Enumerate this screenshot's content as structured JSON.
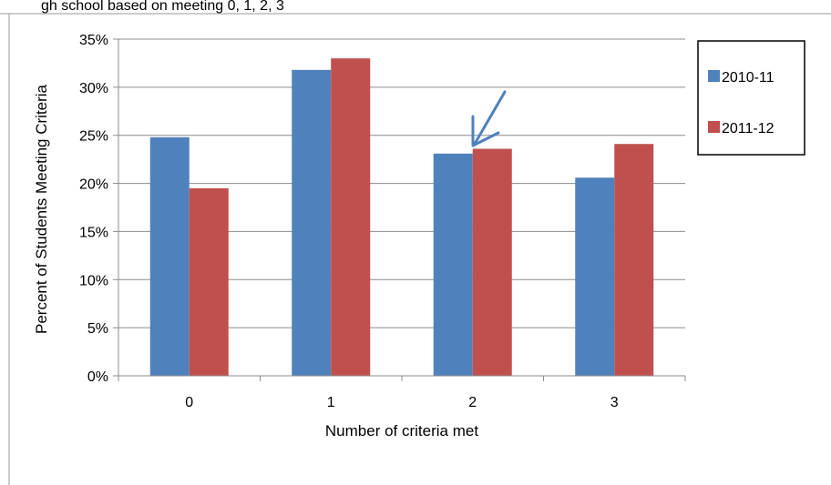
{
  "header_fragment": "gh school based on meeting 0, 1, 2, 3",
  "chart_data": {
    "type": "bar",
    "categories": [
      "0",
      "1",
      "2",
      "3"
    ],
    "series": [
      {
        "name": "2010-11",
        "values": [
          24.8,
          31.8,
          23.1,
          20.6
        ],
        "color": "#4f81bd"
      },
      {
        "name": "2011-12",
        "values": [
          19.5,
          33.0,
          23.6,
          24.1
        ],
        "color": "#c0504d"
      }
    ],
    "xlabel": "Number of criteria met",
    "ylabel": "Percent of Students Meeting Criteria",
    "ylim": [
      0,
      35
    ],
    "yticks": [
      "0%",
      "5%",
      "10%",
      "15%",
      "20%",
      "25%",
      "30%",
      "35%"
    ],
    "grid": true,
    "legend_position": "right",
    "annotation": {
      "type": "arrow",
      "target_category": "2",
      "color": "#4f81bd"
    }
  }
}
